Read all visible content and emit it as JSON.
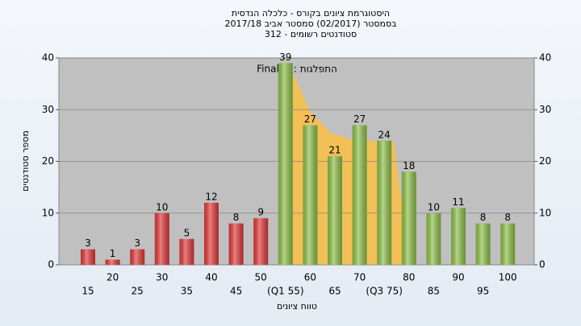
{
  "chart_data": {
    "type": "bar",
    "title": "היסטוגרמת ציונים בקורס - כלכלה הנדסית",
    "subtitle": "בסמסטר  (02/2017)  סמסטר אביב 2017/18",
    "subtitle2": "סטודנטים רשומים - 312",
    "annotation": "Final_A : התפלגות",
    "x_label": "טווח ציונים",
    "y_label": "מספר סטודנטים",
    "categories": [
      "15",
      "20",
      "25",
      "30",
      "35",
      "40",
      "45",
      "50",
      "(Q1 55)",
      "60",
      "65",
      "70",
      "(Q3 75)",
      "80",
      "85",
      "90",
      "95",
      "100"
    ],
    "values": [
      3,
      1,
      3,
      10,
      5,
      12,
      8,
      9,
      39,
      27,
      21,
      27,
      24,
      18,
      10,
      11,
      8,
      8
    ],
    "colors": [
      "#e23a3a",
      "#e23a3a",
      "#e23a3a",
      "#e23a3a",
      "#e23a3a",
      "#e23a3a",
      "#e23a3a",
      "#e23a3a",
      "#8fc04a",
      "#8fc04a",
      "#8fc04a",
      "#8fc04a",
      "#8fc04a",
      "#8fc04a",
      "#8fc04a",
      "#8fc04a",
      "#8fc04a",
      "#8fc04a"
    ],
    "ylim": [
      0,
      40
    ],
    "yticks": [
      0,
      10,
      20,
      30,
      40
    ],
    "y2lim": [
      0,
      40
    ],
    "y2ticks": [
      0,
      10,
      20,
      30,
      40
    ],
    "grid": true
  }
}
